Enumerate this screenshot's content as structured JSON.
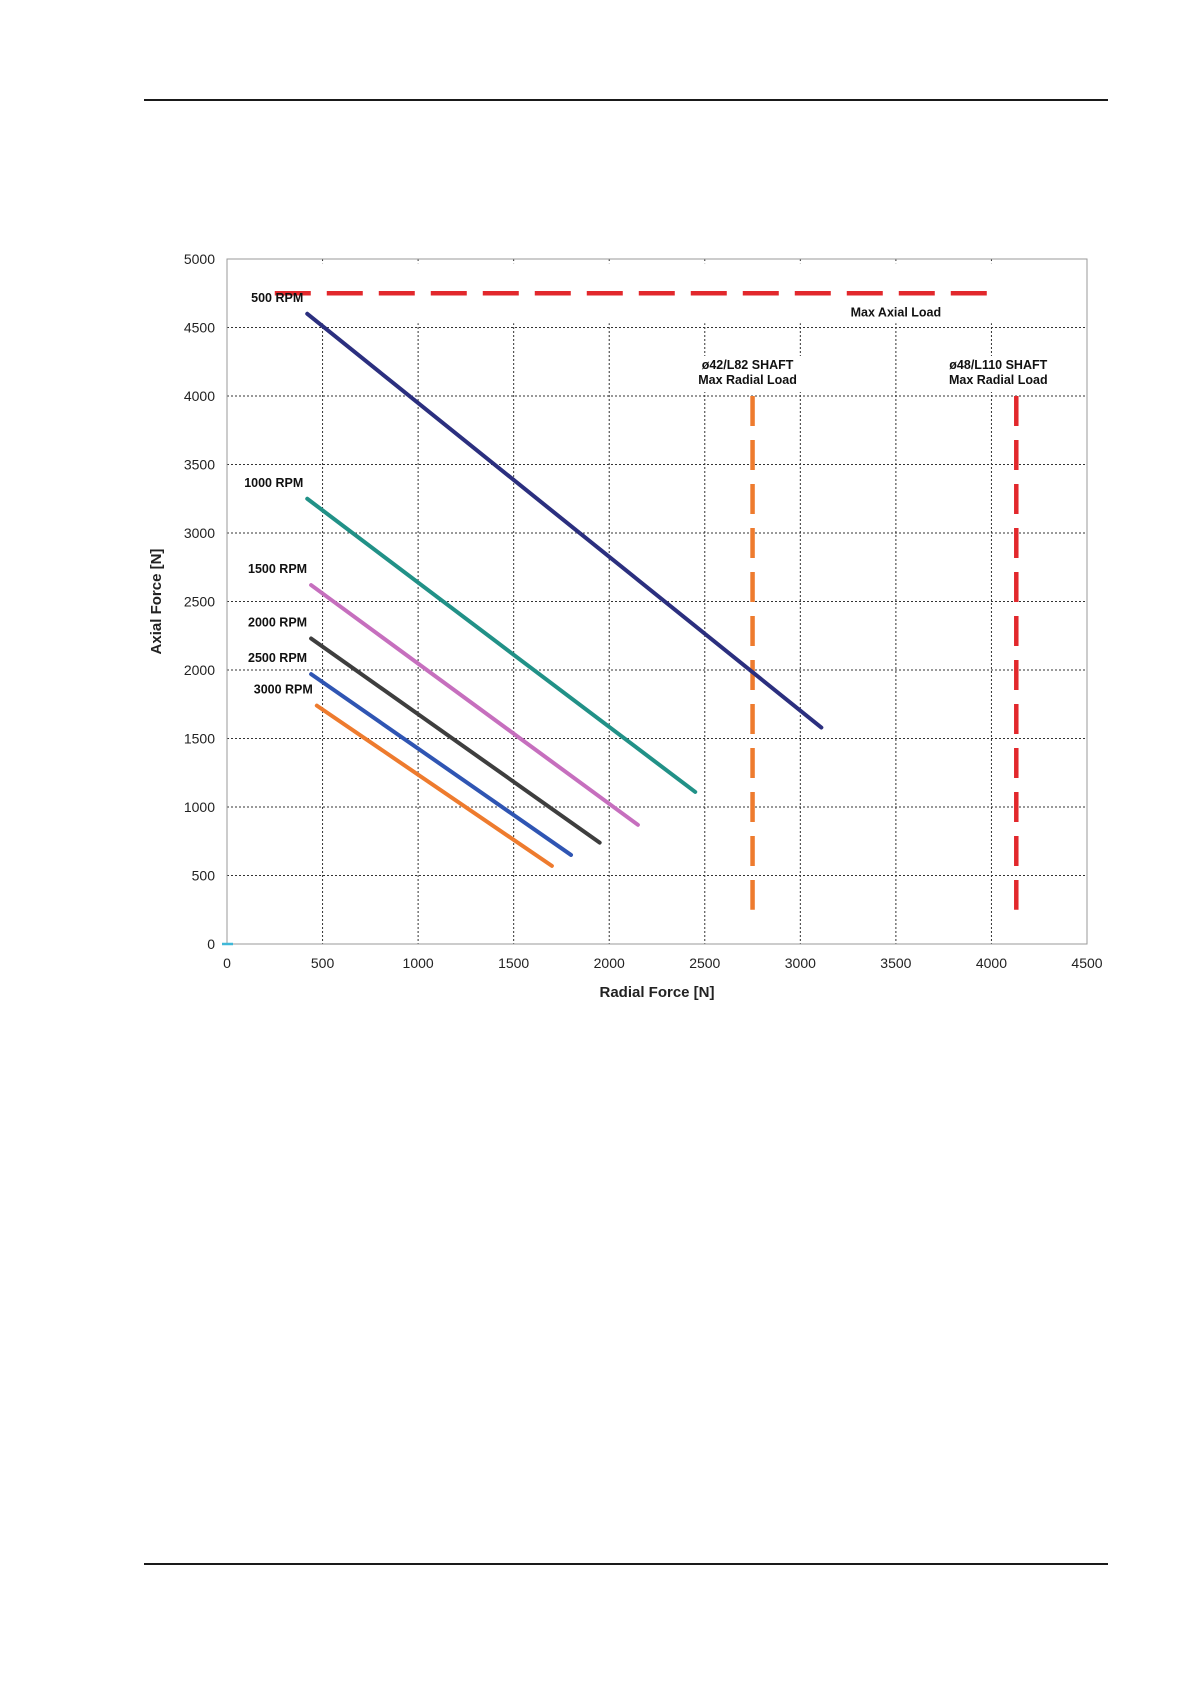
{
  "chart_data": {
    "type": "line",
    "title": "",
    "xlabel": "Radial Force [N]",
    "ylabel": "Axial Force [N]",
    "xlim": [
      0,
      4500
    ],
    "ylim": [
      0,
      5000
    ],
    "xticks": [
      "0",
      "500",
      "1000",
      "1500",
      "2000",
      "2500",
      "3000",
      "3500",
      "4000",
      "4500"
    ],
    "yticks": [
      "0",
      "500",
      "1000",
      "1500",
      "2000",
      "2500",
      "3000",
      "3500",
      "4000",
      "4500",
      "5000"
    ],
    "grid": true,
    "series": [
      {
        "name": "500 RPM",
        "color": "#2b2f7f",
        "x": [
          420,
          3110
        ],
        "y": [
          4600,
          1580
        ]
      },
      {
        "name": "1000 RPM",
        "color": "#219187",
        "x": [
          420,
          2450
        ],
        "y": [
          3250,
          1110
        ]
      },
      {
        "name": "1500 RPM",
        "color": "#c66fbe",
        "x": [
          440,
          2150
        ],
        "y": [
          2620,
          870
        ]
      },
      {
        "name": "2000 RPM",
        "color": "#3e3e3e",
        "x": [
          440,
          1950
        ],
        "y": [
          2230,
          740
        ]
      },
      {
        "name": "2500 RPM",
        "color": "#2f55b3",
        "x": [
          440,
          1800
        ],
        "y": [
          1970,
          650
        ]
      },
      {
        "name": "3000 RPM",
        "color": "#ee7b2e",
        "x": [
          470,
          1700
        ],
        "y": [
          1740,
          570
        ]
      }
    ],
    "annotations": [
      {
        "label": "Max Axial Load",
        "orientation": "horizontal",
        "value": 4750,
        "from": 250,
        "to": 4000,
        "color": "#e2282c"
      },
      {
        "label_lines": [
          "ø42/L82 SHAFT",
          "Max Radial Load"
        ],
        "orientation": "vertical",
        "value": 2750,
        "from": 250,
        "to": 4000,
        "color": "#ee7b2e"
      },
      {
        "label_lines": [
          "ø48/L110 SHAFT",
          "Max Radial Load"
        ],
        "orientation": "vertical",
        "value": 4130,
        "from": 250,
        "to": 4000,
        "color": "#e2282c"
      }
    ]
  }
}
